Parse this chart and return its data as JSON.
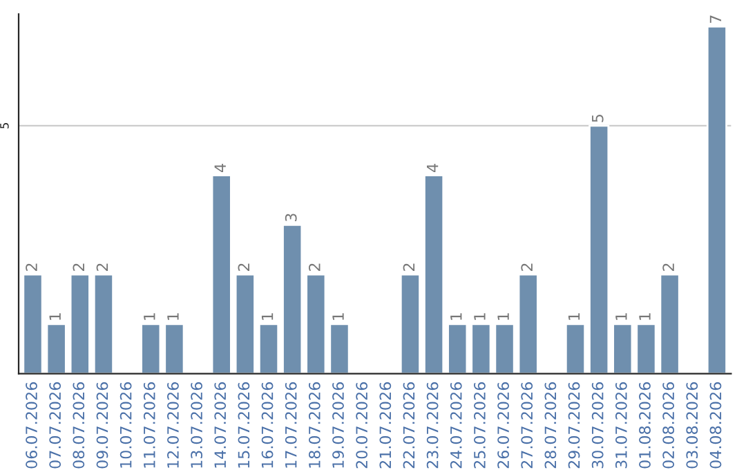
{
  "chart_data": {
    "type": "bar",
    "categories": [
      "06.07.2026",
      "07.07.2026",
      "08.07.2026",
      "09.07.2026",
      "10.07.2026",
      "11.07.2026",
      "12.07.2026",
      "13.07.2026",
      "14.07.2026",
      "15.07.2026",
      "16.07.2026",
      "17.07.2026",
      "18.07.2026",
      "19.07.2026",
      "20.07.2026",
      "21.07.2026",
      "22.07.2026",
      "23.07.2026",
      "24.07.2026",
      "25.07.2026",
      "26.07.2026",
      "27.07.2026",
      "28.07.2026",
      "29.07.2026",
      "30.07.2026",
      "31.07.2026",
      "01.08.2026",
      "02.08.2026",
      "03.08.2026",
      "04.08.2026"
    ],
    "values": [
      2,
      1,
      2,
      2,
      null,
      1,
      1,
      null,
      4,
      2,
      1,
      3,
      2,
      1,
      null,
      null,
      2,
      4,
      1,
      1,
      1,
      2,
      null,
      1,
      5,
      1,
      1,
      2,
      null,
      7
    ],
    "color": "#6f8fae",
    "data_labels": true,
    "ylim": [
      0,
      7.25
    ],
    "yticks": [
      5
    ],
    "grid": "y",
    "legend": false
  }
}
